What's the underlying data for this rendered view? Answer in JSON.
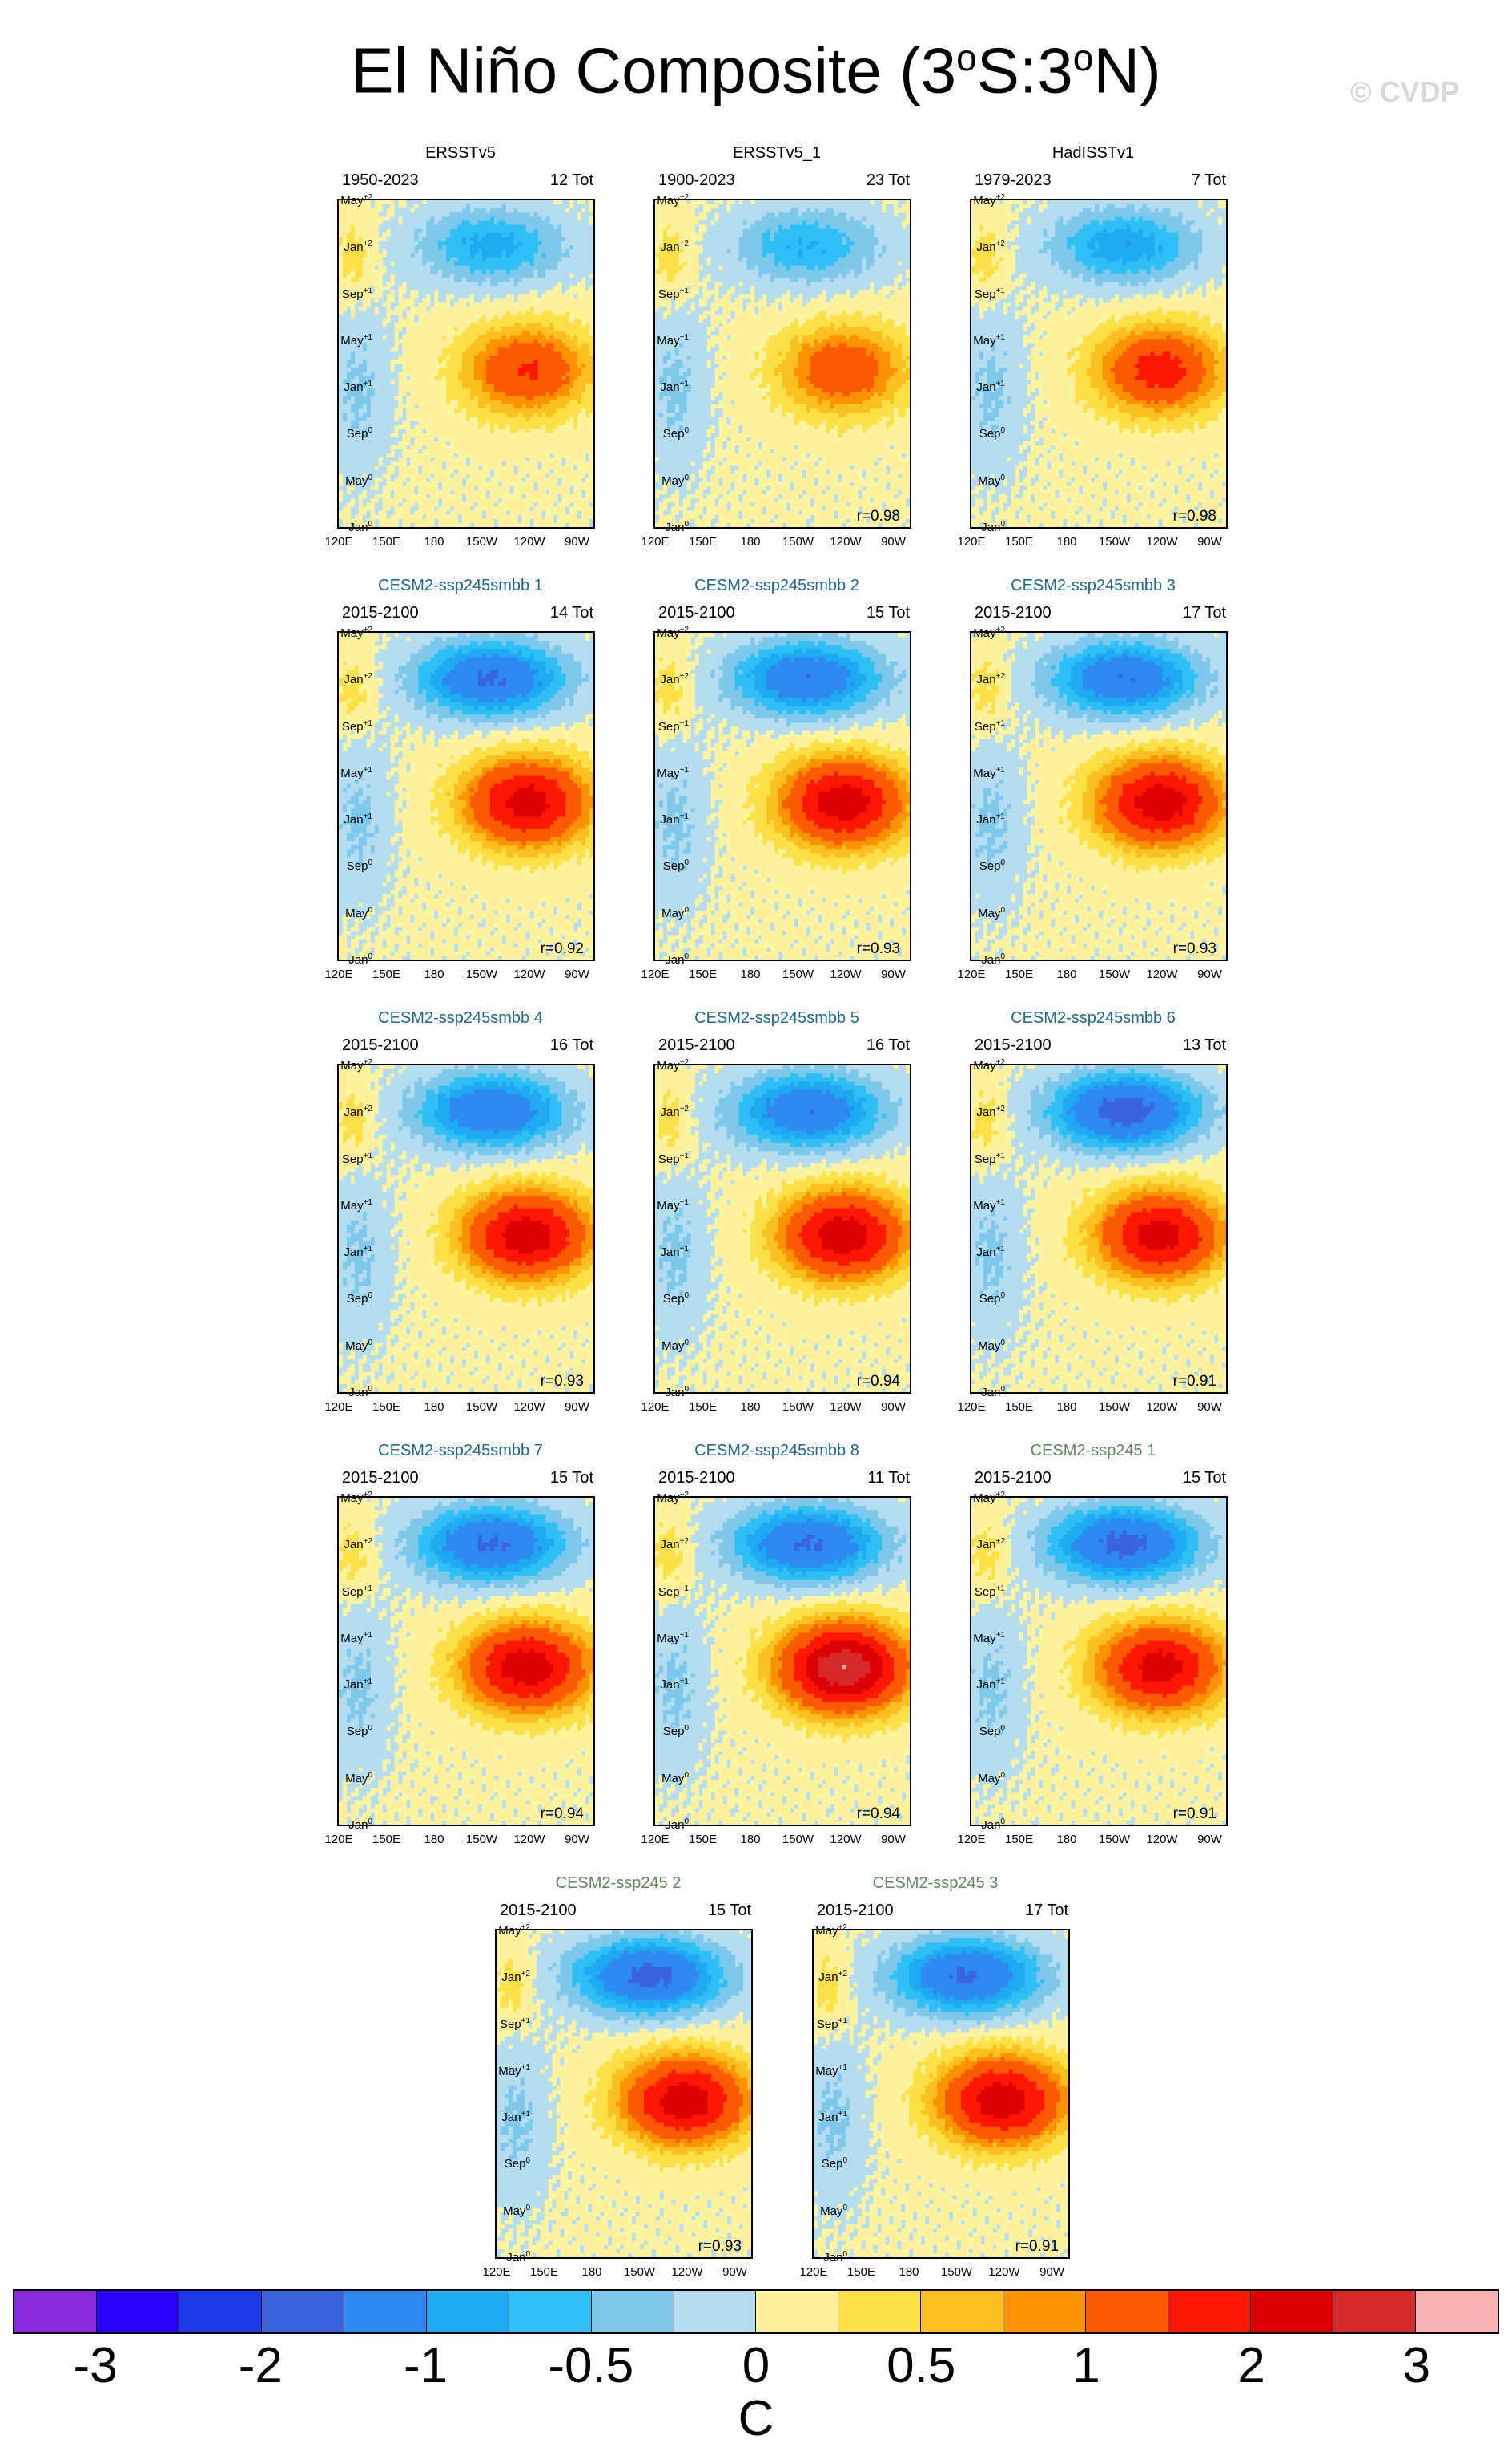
{
  "title": {
    "main": "El Niño Composite (3",
    "sup1": "o",
    "mid": "S:3",
    "sup2": "o",
    "end": "N)"
  },
  "watermark": "© CVDP",
  "colors": {
    "levels": [
      "#8a2be2",
      "#2a00ff",
      "#1a3ae8",
      "#3a64dc",
      "#2e88f0",
      "#1eaaf0",
      "#2ec0f5",
      "#7ec8ec",
      "#b4ddf0",
      "#fff3a0",
      "#fde048",
      "#fcbf20",
      "#fc9200",
      "#fc5a00",
      "#fc1800",
      "#dc0000",
      "#d42a2a",
      "#fcb2b2"
    ]
  },
  "chart_data": {
    "type": "heatmap",
    "description_units": "SST anomaly (C), longitude vs composite month",
    "colorbar": {
      "labels": [
        "-3",
        "-2",
        "-1",
        "-0.5",
        "0",
        "0.5",
        "1",
        "2",
        "3"
      ],
      "unit": "C"
    },
    "x_ticks": [
      "120E",
      "150E",
      "180",
      "150W",
      "120W",
      "90W"
    ],
    "y_ticks": [
      {
        "name": "Jan",
        "sup": "0"
      },
      {
        "name": "May",
        "sup": "0"
      },
      {
        "name": "Sep",
        "sup": "0"
      },
      {
        "name": "Jan",
        "sup": "+1"
      },
      {
        "name": "May",
        "sup": "+1"
      },
      {
        "name": "Sep",
        "sup": "+1"
      },
      {
        "name": "Jan",
        "sup": "+2"
      },
      {
        "name": "May",
        "sup": "+2"
      }
    ],
    "panels": [
      {
        "name": "ERSSTv5",
        "kind": "obs",
        "years": "1950-2023",
        "tot": "12 Tot",
        "r": "",
        "amp": 1.5,
        "neg": 0.9
      },
      {
        "name": "ERSSTv5_1",
        "kind": "obs",
        "years": "1900-2023",
        "tot": "23 Tot",
        "r": "r=0.98",
        "amp": 1.35,
        "neg": 0.8
      },
      {
        "name": "HadISSTv1",
        "kind": "obs",
        "years": "1979-2023",
        "tot": "7 Tot",
        "r": "r=0.98",
        "amp": 1.7,
        "neg": 1.0
      },
      {
        "name": "CESM2-ssp245smbb 1",
        "kind": "smbb",
        "years": "2015-2100",
        "tot": "14 Tot",
        "r": "r=0.92",
        "amp": 2.2,
        "neg": 1.6
      },
      {
        "name": "CESM2-ssp245smbb 2",
        "kind": "smbb",
        "years": "2015-2100",
        "tot": "15 Tot",
        "r": "r=0.93",
        "amp": 2.3,
        "neg": 1.5
      },
      {
        "name": "CESM2-ssp245smbb 3",
        "kind": "smbb",
        "years": "2015-2100",
        "tot": "17 Tot",
        "r": "r=0.93",
        "amp": 2.3,
        "neg": 1.5
      },
      {
        "name": "CESM2-ssp245smbb 4",
        "kind": "smbb",
        "years": "2015-2100",
        "tot": "16 Tot",
        "r": "r=0.93",
        "amp": 2.3,
        "neg": 1.5
      },
      {
        "name": "CESM2-ssp245smbb 5",
        "kind": "smbb",
        "years": "2015-2100",
        "tot": "16 Tot",
        "r": "r=0.94",
        "amp": 2.3,
        "neg": 1.5
      },
      {
        "name": "CESM2-ssp245smbb 6",
        "kind": "smbb",
        "years": "2015-2100",
        "tot": "13 Tot",
        "r": "r=0.91",
        "amp": 2.2,
        "neg": 1.8
      },
      {
        "name": "CESM2-ssp245smbb 7",
        "kind": "smbb",
        "years": "2015-2100",
        "tot": "15 Tot",
        "r": "r=0.94",
        "amp": 2.3,
        "neg": 1.6
      },
      {
        "name": "CESM2-ssp245smbb 8",
        "kind": "smbb",
        "years": "2015-2100",
        "tot": "11 Tot",
        "r": "r=0.94",
        "amp": 2.9,
        "neg": 1.6
      },
      {
        "name": "CESM2-ssp245 1",
        "kind": "ssp",
        "years": "2015-2100",
        "tot": "15 Tot",
        "r": "r=0.91",
        "amp": 2.2,
        "neg": 1.7
      },
      {
        "name": "CESM2-ssp245 2",
        "kind": "ssp",
        "years": "2015-2100",
        "tot": "15 Tot",
        "r": "r=0.93",
        "amp": 2.3,
        "neg": 1.7
      },
      {
        "name": "CESM2-ssp245 3",
        "kind": "ssp",
        "years": "2015-2100",
        "tot": "17 Tot",
        "r": "r=0.91",
        "amp": 2.3,
        "neg": 1.6
      }
    ]
  }
}
